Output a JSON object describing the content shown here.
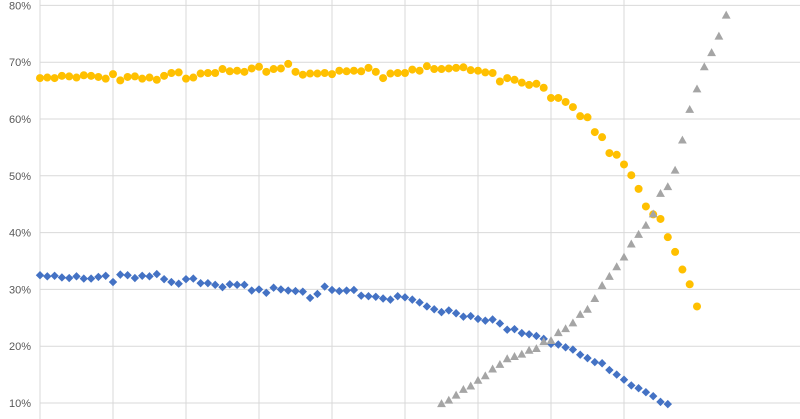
{
  "chart_data": {
    "type": "scatter",
    "title": "",
    "xlabel": "",
    "ylabel": "",
    "ylim": [
      0.098,
      0.81
    ],
    "xlim": [
      0,
      90
    ],
    "grid": {
      "horizontal": true,
      "vertical": true
    },
    "y_ticks": [
      {
        "value": 0.1,
        "label": "10%"
      },
      {
        "value": 0.2,
        "label": "20%"
      },
      {
        "value": 0.3,
        "label": "30%"
      },
      {
        "value": 0.4,
        "label": "40%"
      },
      {
        "value": 0.5,
        "label": "50%"
      },
      {
        "value": 0.6,
        "label": "60%"
      },
      {
        "value": 0.7,
        "label": "70%"
      },
      {
        "value": 0.8,
        "label": "80%"
      }
    ],
    "x_gridlines": [
      0,
      10,
      20,
      30,
      40,
      50,
      60,
      70,
      80
    ],
    "colors": {
      "orange": "#FFC000",
      "blue": "#4472C4",
      "gray": "#A5A5A5",
      "grid": "#D9D9D9"
    },
    "series": [
      {
        "color": "#FFC000",
        "marker": "circle",
        "points": [
          [
            0,
            0.672
          ],
          [
            1,
            0.673
          ],
          [
            2,
            0.672
          ],
          [
            3,
            0.676
          ],
          [
            4,
            0.675
          ],
          [
            5,
            0.673
          ],
          [
            6,
            0.677
          ],
          [
            7,
            0.676
          ],
          [
            8,
            0.674
          ],
          [
            9,
            0.671
          ],
          [
            10,
            0.679
          ],
          [
            11,
            0.668
          ],
          [
            12,
            0.674
          ],
          [
            13,
            0.675
          ],
          [
            14,
            0.671
          ],
          [
            15,
            0.673
          ],
          [
            16,
            0.669
          ],
          [
            17,
            0.676
          ],
          [
            18,
            0.681
          ],
          [
            19,
            0.682
          ],
          [
            20,
            0.671
          ],
          [
            21,
            0.673
          ],
          [
            22,
            0.68
          ],
          [
            23,
            0.681
          ],
          [
            24,
            0.681
          ],
          [
            25,
            0.688
          ],
          [
            26,
            0.684
          ],
          [
            27,
            0.685
          ],
          [
            28,
            0.683
          ],
          [
            29,
            0.689
          ],
          [
            30,
            0.692
          ],
          [
            31,
            0.683
          ],
          [
            32,
            0.688
          ],
          [
            33,
            0.689
          ],
          [
            34,
            0.697
          ],
          [
            35,
            0.683
          ],
          [
            36,
            0.678
          ],
          [
            37,
            0.68
          ],
          [
            38,
            0.68
          ],
          [
            39,
            0.681
          ],
          [
            40,
            0.679
          ],
          [
            41,
            0.685
          ],
          [
            42,
            0.684
          ],
          [
            43,
            0.685
          ],
          [
            44,
            0.684
          ],
          [
            45,
            0.69
          ],
          [
            46,
            0.683
          ],
          [
            47,
            0.672
          ],
          [
            48,
            0.68
          ],
          [
            49,
            0.681
          ],
          [
            50,
            0.681
          ],
          [
            51,
            0.687
          ],
          [
            52,
            0.685
          ],
          [
            53,
            0.693
          ],
          [
            54,
            0.688
          ],
          [
            55,
            0.688
          ],
          [
            56,
            0.689
          ],
          [
            57,
            0.69
          ],
          [
            58,
            0.691
          ],
          [
            59,
            0.686
          ],
          [
            60,
            0.685
          ],
          [
            61,
            0.682
          ],
          [
            62,
            0.681
          ],
          [
            63,
            0.666
          ],
          [
            64,
            0.672
          ],
          [
            65,
            0.669
          ],
          [
            66,
            0.664
          ],
          [
            67,
            0.66
          ],
          [
            68,
            0.662
          ],
          [
            69,
            0.655
          ],
          [
            70,
            0.637
          ],
          [
            71,
            0.637
          ],
          [
            72,
            0.63
          ],
          [
            73,
            0.621
          ],
          [
            74,
            0.605
          ],
          [
            75,
            0.603
          ],
          [
            76,
            0.577
          ],
          [
            77,
            0.568
          ],
          [
            78,
            0.54
          ],
          [
            79,
            0.537
          ],
          [
            80,
            0.52
          ],
          [
            81,
            0.501
          ],
          [
            82,
            0.477
          ],
          [
            83,
            0.446
          ],
          [
            84,
            0.432
          ],
          [
            85,
            0.424
          ],
          [
            86,
            0.392
          ],
          [
            87,
            0.366
          ],
          [
            88,
            0.335
          ],
          [
            89,
            0.309
          ],
          [
            90,
            0.27
          ]
        ]
      },
      {
        "color": "#4472C4",
        "marker": "diamond",
        "points": [
          [
            0,
            0.325
          ],
          [
            1,
            0.323
          ],
          [
            2,
            0.324
          ],
          [
            3,
            0.321
          ],
          [
            4,
            0.32
          ],
          [
            5,
            0.323
          ],
          [
            6,
            0.319
          ],
          [
            7,
            0.319
          ],
          [
            8,
            0.322
          ],
          [
            9,
            0.324
          ],
          [
            10,
            0.313
          ],
          [
            11,
            0.326
          ],
          [
            12,
            0.325
          ],
          [
            13,
            0.32
          ],
          [
            14,
            0.324
          ],
          [
            15,
            0.323
          ],
          [
            16,
            0.327
          ],
          [
            17,
            0.318
          ],
          [
            18,
            0.313
          ],
          [
            19,
            0.31
          ],
          [
            20,
            0.318
          ],
          [
            21,
            0.319
          ],
          [
            22,
            0.311
          ],
          [
            23,
            0.311
          ],
          [
            24,
            0.308
          ],
          [
            25,
            0.304
          ],
          [
            26,
            0.309
          ],
          [
            27,
            0.308
          ],
          [
            28,
            0.308
          ],
          [
            29,
            0.298
          ],
          [
            30,
            0.3
          ],
          [
            31,
            0.294
          ],
          [
            32,
            0.303
          ],
          [
            33,
            0.3
          ],
          [
            34,
            0.298
          ],
          [
            35,
            0.297
          ],
          [
            36,
            0.296
          ],
          [
            37,
            0.285
          ],
          [
            38,
            0.292
          ],
          [
            39,
            0.305
          ],
          [
            40,
            0.299
          ],
          [
            41,
            0.297
          ],
          [
            42,
            0.298
          ],
          [
            43,
            0.299
          ],
          [
            44,
            0.289
          ],
          [
            45,
            0.288
          ],
          [
            46,
            0.287
          ],
          [
            47,
            0.284
          ],
          [
            48,
            0.282
          ],
          [
            49,
            0.288
          ],
          [
            50,
            0.286
          ],
          [
            51,
            0.282
          ],
          [
            52,
            0.277
          ],
          [
            53,
            0.27
          ],
          [
            54,
            0.265
          ],
          [
            55,
            0.26
          ],
          [
            56,
            0.263
          ],
          [
            57,
            0.258
          ],
          [
            58,
            0.252
          ],
          [
            59,
            0.253
          ],
          [
            60,
            0.248
          ],
          [
            61,
            0.245
          ],
          [
            62,
            0.247
          ],
          [
            63,
            0.24
          ],
          [
            64,
            0.229
          ],
          [
            65,
            0.23
          ],
          [
            66,
            0.223
          ],
          [
            67,
            0.221
          ],
          [
            68,
            0.218
          ],
          [
            69,
            0.213
          ],
          [
            70,
            0.204
          ],
          [
            71,
            0.203
          ],
          [
            72,
            0.198
          ],
          [
            73,
            0.194
          ],
          [
            74,
            0.185
          ],
          [
            75,
            0.179
          ],
          [
            76,
            0.172
          ],
          [
            77,
            0.17
          ],
          [
            78,
            0.158
          ],
          [
            79,
            0.15
          ],
          [
            80,
            0.141
          ],
          [
            81,
            0.131
          ],
          [
            82,
            0.126
          ],
          [
            83,
            0.119
          ],
          [
            84,
            0.112
          ],
          [
            85,
            0.102
          ],
          [
            86,
            0.098
          ]
        ]
      },
      {
        "color": "#A5A5A5",
        "marker": "triangle",
        "points": [
          [
            55,
            0.099
          ],
          [
            56,
            0.105
          ],
          [
            57,
            0.114
          ],
          [
            58,
            0.124
          ],
          [
            59,
            0.13
          ],
          [
            60,
            0.14
          ],
          [
            61,
            0.148
          ],
          [
            62,
            0.16
          ],
          [
            63,
            0.168
          ],
          [
            64,
            0.178
          ],
          [
            65,
            0.182
          ],
          [
            66,
            0.186
          ],
          [
            67,
            0.193
          ],
          [
            68,
            0.196
          ],
          [
            69,
            0.208
          ],
          [
            70,
            0.21
          ],
          [
            71,
            0.224
          ],
          [
            72,
            0.231
          ],
          [
            73,
            0.241
          ],
          [
            74,
            0.256
          ],
          [
            75,
            0.265
          ],
          [
            76,
            0.284
          ],
          [
            77,
            0.307
          ],
          [
            78,
            0.323
          ],
          [
            79,
            0.34
          ],
          [
            80,
            0.357
          ],
          [
            81,
            0.38
          ],
          [
            82,
            0.397
          ],
          [
            83,
            0.413
          ],
          [
            84,
            0.433
          ],
          [
            85,
            0.469
          ],
          [
            86,
            0.481
          ],
          [
            87,
            0.51
          ],
          [
            88,
            0.563
          ],
          [
            89,
            0.617
          ],
          [
            90,
            0.653
          ],
          [
            91,
            0.692
          ],
          [
            92,
            0.717
          ],
          [
            93,
            0.746
          ],
          [
            94,
            0.783
          ]
        ]
      }
    ]
  }
}
